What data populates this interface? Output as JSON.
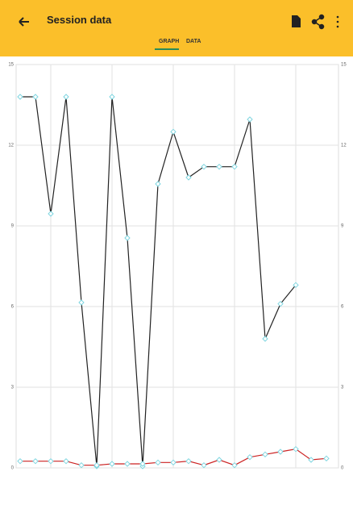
{
  "header": {
    "title": "Session data",
    "tabs": [
      "GRAPH",
      "DATA"
    ]
  },
  "chart_data": {
    "type": "line",
    "categories": [
      null,
      null,
      null,
      null,
      null,
      null,
      null,
      null,
      null,
      null,
      null,
      null,
      null,
      null,
      null,
      null,
      null,
      null,
      null,
      null,
      null
    ],
    "series": [
      {
        "color": "#222222",
        "values": [
          13.8,
          13.8,
          9.45,
          13.8,
          6.15,
          0.06,
          13.8,
          8.55,
          0.06,
          10.56,
          12.5,
          10.8,
          11.2,
          11.2,
          11.2,
          12.96,
          4.8,
          6.1,
          6.8,
          null,
          null
        ]
      },
      {
        "color": "#cc2222",
        "values": [
          0.25,
          0.25,
          0.25,
          0.25,
          0.1,
          0.1,
          0.15,
          0.15,
          0.15,
          0.2,
          0.2,
          0.25,
          0.1,
          0.3,
          0.1,
          0.4,
          0.5,
          0.6,
          0.7,
          0.3,
          0.35
        ]
      }
    ],
    "ylim": [
      0,
      15
    ],
    "yticks": [
      0,
      3,
      6,
      9,
      12,
      15
    ],
    "grid": true
  }
}
